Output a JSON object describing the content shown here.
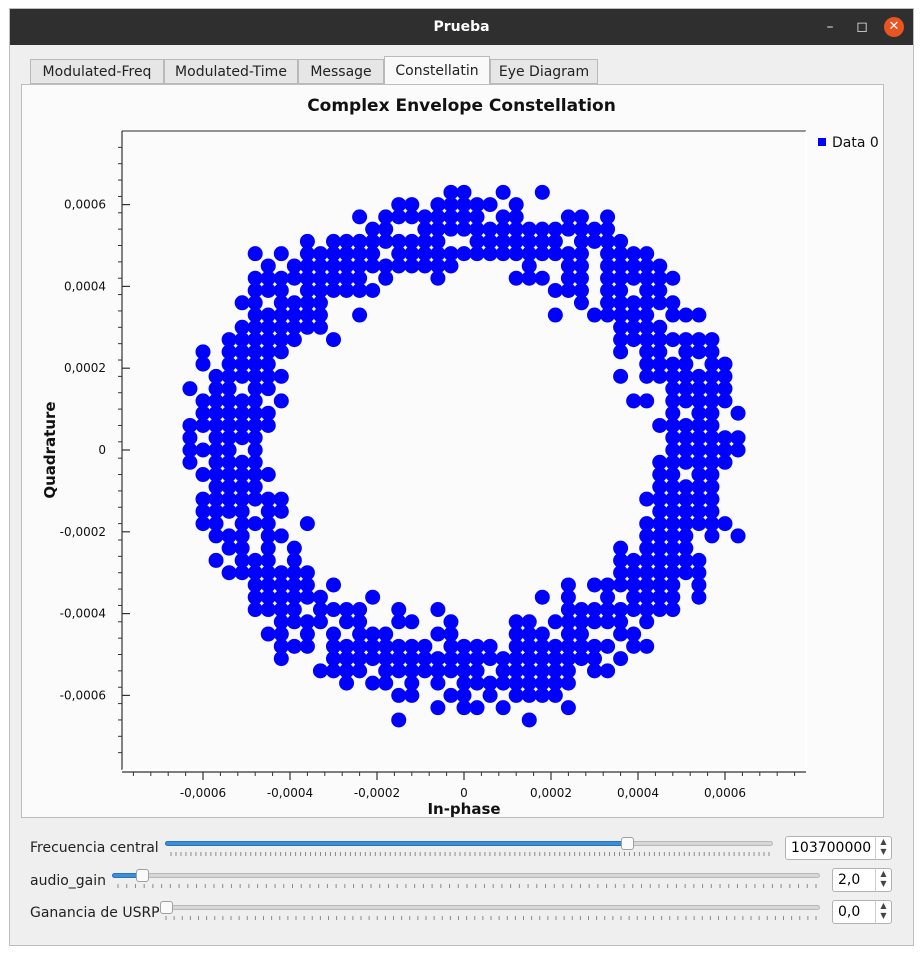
{
  "window": {
    "title": "Prueba"
  },
  "tabs": [
    {
      "label": "Modulated-Freq",
      "active": false
    },
    {
      "label": "Modulated-Time",
      "active": false
    },
    {
      "label": "Message",
      "active": false
    },
    {
      "label": "Constellatin",
      "active": true
    },
    {
      "label": "Eye Diagram",
      "active": false
    }
  ],
  "chart_data": {
    "type": "scatter",
    "title": "Complex Envelope Constellation",
    "xlabel": "In-phase",
    "ylabel": "Quadrature",
    "xlim": [
      -0.00078,
      0.00078
    ],
    "ylim": [
      -0.00078,
      0.00078
    ],
    "xticks": [
      "-0,0006",
      "-0,0004",
      "-0,0002",
      "0",
      "0,0002",
      "0,0004",
      "0,0006"
    ],
    "yticks": [
      "0,0006",
      "0,0004",
      "0,0002",
      "0",
      "-0,0002",
      "-0,0004",
      "-0,0006"
    ],
    "legend": "top-right",
    "series": [
      {
        "name": "Data 0",
        "color": "#0000ff",
        "shape": "ring",
        "grid_step": 3e-05,
        "inner_radius": 0.00043,
        "outer_radius": 0.00064,
        "points_note": "points lie on a 0.00003 grid within the annulus"
      }
    ]
  },
  "controls": [
    {
      "label": "Frecuencia central",
      "value": "103700000",
      "fraction": 0.76
    },
    {
      "label": "audio_gain",
      "value": "2,0",
      "fraction": 0.04
    },
    {
      "label": "Ganancia de USRP",
      "value": "0,0",
      "fraction": 0.0
    }
  ]
}
